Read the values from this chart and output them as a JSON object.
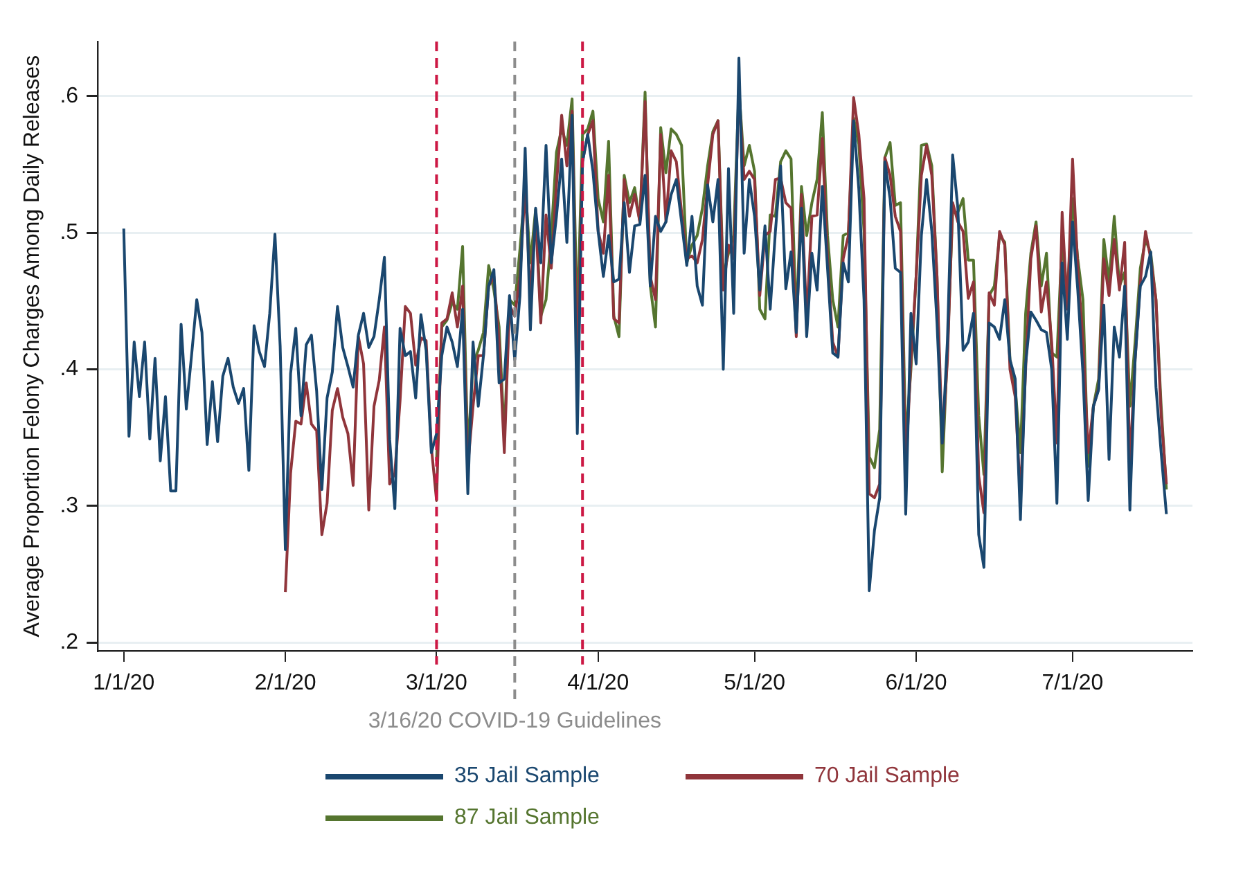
{
  "chart_data": {
    "type": "line",
    "ylabel": "Average Proportion Felony Charges Among Daily Releases",
    "x": [
      "2020-01-01",
      "2020-01-02",
      "2020-01-03",
      "2020-01-04",
      "2020-01-05",
      "2020-01-06",
      "2020-01-07",
      "2020-01-08",
      "2020-01-09",
      "2020-01-10",
      "2020-01-11",
      "2020-01-12",
      "2020-01-13",
      "2020-01-14",
      "2020-01-15",
      "2020-01-16",
      "2020-01-17",
      "2020-01-18",
      "2020-01-19",
      "2020-01-20",
      "2020-01-21",
      "2020-01-22",
      "2020-01-23",
      "2020-01-24",
      "2020-01-25",
      "2020-01-26",
      "2020-01-27",
      "2020-01-28",
      "2020-01-29",
      "2020-01-30",
      "2020-01-31",
      "2020-02-01",
      "2020-02-02",
      "2020-02-03",
      "2020-02-04",
      "2020-02-05",
      "2020-02-06",
      "2020-02-07",
      "2020-02-08",
      "2020-02-09",
      "2020-02-10",
      "2020-02-11",
      "2020-02-12",
      "2020-02-13",
      "2020-02-14",
      "2020-02-15",
      "2020-02-16",
      "2020-02-17",
      "2020-02-18",
      "2020-02-19",
      "2020-02-20",
      "2020-02-21",
      "2020-02-22",
      "2020-02-23",
      "2020-02-24",
      "2020-02-25",
      "2020-02-26",
      "2020-02-27",
      "2020-02-28",
      "2020-02-29",
      "2020-03-01",
      "2020-03-02",
      "2020-03-03",
      "2020-03-04",
      "2020-03-05",
      "2020-03-06",
      "2020-03-07",
      "2020-03-08",
      "2020-03-09",
      "2020-03-10",
      "2020-03-11",
      "2020-03-12",
      "2020-03-13",
      "2020-03-14",
      "2020-03-15",
      "2020-03-16",
      "2020-03-17",
      "2020-03-18",
      "2020-03-19",
      "2020-03-20",
      "2020-03-21",
      "2020-03-22",
      "2020-03-23",
      "2020-03-24",
      "2020-03-25",
      "2020-03-26",
      "2020-03-27",
      "2020-03-28",
      "2020-03-29",
      "2020-03-30",
      "2020-03-31",
      "2020-04-01",
      "2020-04-02",
      "2020-04-03",
      "2020-04-04",
      "2020-04-05",
      "2020-04-06",
      "2020-04-07",
      "2020-04-08",
      "2020-04-09",
      "2020-04-10",
      "2020-04-11",
      "2020-04-12",
      "2020-04-13",
      "2020-04-14",
      "2020-04-15",
      "2020-04-16",
      "2020-04-17",
      "2020-04-18",
      "2020-04-19",
      "2020-04-20",
      "2020-04-21",
      "2020-04-22",
      "2020-04-23",
      "2020-04-24",
      "2020-04-25",
      "2020-04-26",
      "2020-04-27",
      "2020-04-28",
      "2020-04-29",
      "2020-04-30",
      "2020-05-01",
      "2020-05-02",
      "2020-05-03",
      "2020-05-04",
      "2020-05-05",
      "2020-05-06",
      "2020-05-07",
      "2020-05-08",
      "2020-05-09",
      "2020-05-10",
      "2020-05-11",
      "2020-05-12",
      "2020-05-13",
      "2020-05-14",
      "2020-05-15",
      "2020-05-16",
      "2020-05-17",
      "2020-05-18",
      "2020-05-19",
      "2020-05-20",
      "2020-05-21",
      "2020-05-22",
      "2020-05-23",
      "2020-05-24",
      "2020-05-25",
      "2020-05-26",
      "2020-05-27",
      "2020-05-28",
      "2020-05-29",
      "2020-05-30",
      "2020-05-31",
      "2020-06-01",
      "2020-06-02",
      "2020-06-03",
      "2020-06-04",
      "2020-06-05",
      "2020-06-06",
      "2020-06-07",
      "2020-06-08",
      "2020-06-09",
      "2020-06-10",
      "2020-06-11",
      "2020-06-12",
      "2020-06-13",
      "2020-06-14",
      "2020-06-15",
      "2020-06-16",
      "2020-06-17",
      "2020-06-18",
      "2020-06-19",
      "2020-06-20",
      "2020-06-21",
      "2020-06-22",
      "2020-06-23",
      "2020-06-24",
      "2020-06-25",
      "2020-06-26",
      "2020-06-27",
      "2020-06-28",
      "2020-06-29",
      "2020-06-30",
      "2020-07-01",
      "2020-07-02",
      "2020-07-03",
      "2020-07-04",
      "2020-07-05",
      "2020-07-06",
      "2020-07-07",
      "2020-07-08",
      "2020-07-09",
      "2020-07-10",
      "2020-07-11",
      "2020-07-12",
      "2020-07-13",
      "2020-07-14",
      "2020-07-15",
      "2020-07-16",
      "2020-07-17",
      "2020-07-18",
      "2020-07-19"
    ],
    "series": [
      {
        "name": "35 Jail Sample",
        "color": "#1a476f",
        "values": [
          0.503,
          0.351,
          0.42,
          0.38,
          0.42,
          0.349,
          0.408,
          0.333,
          0.38,
          0.311,
          0.311,
          0.433,
          0.371,
          0.41,
          0.451,
          0.427,
          0.345,
          0.391,
          0.347,
          0.395,
          0.408,
          0.387,
          0.375,
          0.386,
          0.326,
          0.432,
          0.413,
          0.402,
          0.441,
          0.499,
          0.417,
          0.268,
          0.397,
          0.43,
          0.366,
          0.418,
          0.425,
          0.384,
          0.312,
          0.379,
          0.398,
          0.446,
          0.416,
          0.402,
          0.387,
          0.425,
          0.441,
          0.416,
          0.424,
          0.451,
          0.482,
          0.349,
          0.298,
          0.43,
          0.41,
          0.413,
          0.379,
          0.44,
          0.414,
          0.339,
          0.353,
          0.41,
          0.431,
          0.42,
          0.402,
          0.444,
          0.309,
          0.42,
          0.373,
          0.41,
          0.461,
          0.473,
          0.39,
          0.393,
          0.454,
          0.407,
          0.454,
          0.562,
          0.429,
          0.518,
          0.478,
          0.564,
          0.478,
          0.512,
          0.554,
          0.493,
          0.586,
          0.353,
          0.552,
          0.572,
          0.545,
          0.501,
          0.468,
          0.498,
          0.464,
          0.466,
          0.522,
          0.471,
          0.505,
          0.506,
          0.542,
          0.461,
          0.512,
          0.501,
          0.508,
          0.528,
          0.539,
          0.508,
          0.476,
          0.512,
          0.461,
          0.447,
          0.535,
          0.508,
          0.539,
          0.4,
          0.547,
          0.441,
          0.628,
          0.485,
          0.539,
          0.512,
          0.458,
          0.505,
          0.444,
          0.501,
          0.549,
          0.459,
          0.486,
          0.427,
          0.518,
          0.424,
          0.485,
          0.458,
          0.534,
          0.474,
          0.412,
          0.409,
          0.478,
          0.464,
          0.582,
          0.532,
          0.451,
          0.238,
          0.282,
          0.306,
          0.552,
          0.525,
          0.474,
          0.471,
          0.294,
          0.441,
          0.404,
          0.498,
          0.539,
          0.501,
          0.434,
          0.346,
          0.421,
          0.557,
          0.518,
          0.414,
          0.42,
          0.441,
          0.279,
          0.255,
          0.434,
          0.431,
          0.422,
          0.451,
          0.407,
          0.393,
          0.29,
          0.404,
          0.442,
          0.436,
          0.429,
          0.427,
          0.4,
          0.302,
          0.478,
          0.422,
          0.508,
          0.458,
          0.397,
          0.304,
          0.373,
          0.385,
          0.447,
          0.334,
          0.431,
          0.409,
          0.461,
          0.297,
          0.407,
          0.461,
          0.468,
          0.486,
          0.387,
          0.339,
          0.294
        ]
      },
      {
        "name": "70 Jail Sample",
        "color": "#90353b",
        "values": [
          null,
          null,
          null,
          null,
          null,
          null,
          null,
          null,
          null,
          null,
          null,
          null,
          null,
          null,
          null,
          null,
          null,
          null,
          null,
          null,
          null,
          null,
          null,
          null,
          null,
          null,
          null,
          null,
          null,
          null,
          null,
          0.237,
          0.324,
          0.362,
          0.36,
          0.39,
          0.36,
          0.355,
          0.279,
          0.302,
          0.37,
          0.386,
          0.365,
          0.353,
          0.315,
          0.424,
          0.404,
          0.297,
          0.373,
          0.392,
          0.431,
          0.316,
          0.324,
          0.377,
          0.446,
          0.441,
          0.403,
          0.423,
          0.421,
          0.343,
          0.304,
          0.434,
          0.437,
          0.456,
          0.431,
          0.461,
          0.329,
          0.373,
          0.41,
          0.41,
          0.461,
          0.468,
          0.42,
          0.339,
          0.447,
          0.439,
          0.468,
          0.534,
          0.454,
          0.512,
          0.434,
          0.513,
          0.474,
          0.535,
          0.586,
          0.549,
          0.589,
          0.4,
          0.552,
          0.572,
          0.582,
          0.501,
          0.485,
          0.542,
          0.437,
          0.434,
          0.539,
          0.512,
          0.528,
          0.508,
          0.596,
          0.468,
          0.451,
          0.572,
          0.508,
          0.56,
          0.552,
          0.515,
          0.481,
          0.483,
          0.478,
          0.495,
          0.535,
          0.572,
          0.582,
          0.458,
          0.491,
          0.481,
          0.603,
          0.539,
          0.545,
          0.539,
          0.454,
          0.498,
          0.501,
          0.539,
          0.54,
          0.522,
          0.518,
          0.424,
          0.528,
          0.437,
          0.512,
          0.513,
          0.569,
          0.481,
          0.42,
          0.409,
          0.481,
          0.498,
          0.599,
          0.572,
          0.525,
          0.309,
          0.306,
          0.316,
          0.555,
          0.542,
          0.512,
          0.501,
          0.326,
          0.407,
          0.468,
          0.542,
          0.564,
          0.542,
          0.468,
          0.346,
          0.407,
          0.522,
          0.508,
          0.501,
          0.452,
          0.464,
          0.322,
          0.295,
          0.456,
          0.447,
          0.501,
          0.491,
          0.4,
          0.38,
          0.306,
          0.4,
          0.481,
          0.505,
          0.442,
          0.464,
          0.42,
          0.346,
          0.515,
          0.444,
          0.554,
          0.474,
          0.42,
          0.339,
          0.373,
          0.386,
          0.481,
          0.454,
          0.495,
          0.458,
          0.493,
          0.329,
          0.407,
          0.464,
          0.501,
          0.481,
          0.451,
          0.366,
          0.316
        ]
      },
      {
        "name": "87 Jail Sample",
        "color": "#55752f",
        "values": [
          null,
          null,
          null,
          null,
          null,
          null,
          null,
          null,
          null,
          null,
          null,
          null,
          null,
          null,
          null,
          null,
          null,
          null,
          null,
          null,
          null,
          null,
          null,
          null,
          null,
          null,
          null,
          null,
          null,
          null,
          null,
          null,
          null,
          null,
          null,
          null,
          null,
          null,
          null,
          null,
          null,
          null,
          null,
          null,
          null,
          null,
          null,
          null,
          null,
          null,
          null,
          null,
          null,
          null,
          null,
          null,
          null,
          null,
          null,
          null,
          0.333,
          0.431,
          0.436,
          0.449,
          0.444,
          0.49,
          0.339,
          0.404,
          0.414,
          0.427,
          0.476,
          0.458,
          0.431,
          0.35,
          0.451,
          0.447,
          0.488,
          0.535,
          0.478,
          0.517,
          0.439,
          0.451,
          0.498,
          0.559,
          0.576,
          0.564,
          0.598,
          0.434,
          0.572,
          0.576,
          0.589,
          0.525,
          0.508,
          0.567,
          0.439,
          0.424,
          0.542,
          0.522,
          0.533,
          0.508,
          0.603,
          0.461,
          0.431,
          0.577,
          0.544,
          0.576,
          0.572,
          0.564,
          0.478,
          0.491,
          0.498,
          0.518,
          0.549,
          0.574,
          0.582,
          0.468,
          0.485,
          0.498,
          0.606,
          0.549,
          0.564,
          0.545,
          0.444,
          0.437,
          0.513,
          0.512,
          0.552,
          0.56,
          0.554,
          0.434,
          0.534,
          0.498,
          0.522,
          0.539,
          0.588,
          0.498,
          0.451,
          0.431,
          0.498,
          0.5,
          0.584,
          0.565,
          0.501,
          0.336,
          0.328,
          0.356,
          0.555,
          0.566,
          0.52,
          0.522,
          0.346,
          0.4,
          0.468,
          0.564,
          0.565,
          0.549,
          0.468,
          0.325,
          0.414,
          0.515,
          0.515,
          0.525,
          0.48,
          0.48,
          0.366,
          0.323,
          0.454,
          0.461,
          0.498,
          0.493,
          0.407,
          0.387,
          0.339,
          0.441,
          0.485,
          0.508,
          0.461,
          0.485,
          0.412,
          0.409,
          0.495,
          0.454,
          0.525,
          0.481,
          0.451,
          0.329,
          0.373,
          0.393,
          0.495,
          0.464,
          0.512,
          0.461,
          0.471,
          0.373,
          0.42,
          0.474,
          0.495,
          0.485,
          0.451,
          0.373,
          0.312
        ]
      }
    ],
    "xlim": [
      "2019-12-27",
      "2020-07-24"
    ],
    "xticks": [
      {
        "value": "2020-01-01",
        "label": "1/1/20"
      },
      {
        "value": "2020-02-01",
        "label": "2/1/20"
      },
      {
        "value": "2020-03-01",
        "label": "3/1/20"
      },
      {
        "value": "2020-04-01",
        "label": "4/1/20"
      },
      {
        "value": "2020-05-01",
        "label": "5/1/20"
      },
      {
        "value": "2020-06-01",
        "label": "6/1/20"
      },
      {
        "value": "2020-07-01",
        "label": "7/1/20"
      }
    ],
    "ylim": [
      0.194,
      0.64
    ],
    "yticks": [
      {
        "value": 0.2,
        "label": ".2"
      },
      {
        "value": 0.3,
        "label": ".3"
      },
      {
        "value": 0.4,
        "label": ".4"
      },
      {
        "value": 0.5,
        "label": ".5"
      },
      {
        "value": 0.6,
        "label": ".6"
      }
    ],
    "ref_lines": [
      {
        "axis": "x",
        "value": "2020-03-01",
        "color": "#cc1844",
        "line_style": "dashed"
      },
      {
        "axis": "x",
        "value": "2020-03-16",
        "label": "3/16/20 COVID-19 Guidelines",
        "color": "#8c8c8c",
        "line_style": "dashed"
      },
      {
        "axis": "x",
        "value": "2020-03-29",
        "color": "#cc1844",
        "line_style": "dashed"
      }
    ],
    "grid": "y",
    "legend": "bottom",
    "line_style": "solid"
  }
}
